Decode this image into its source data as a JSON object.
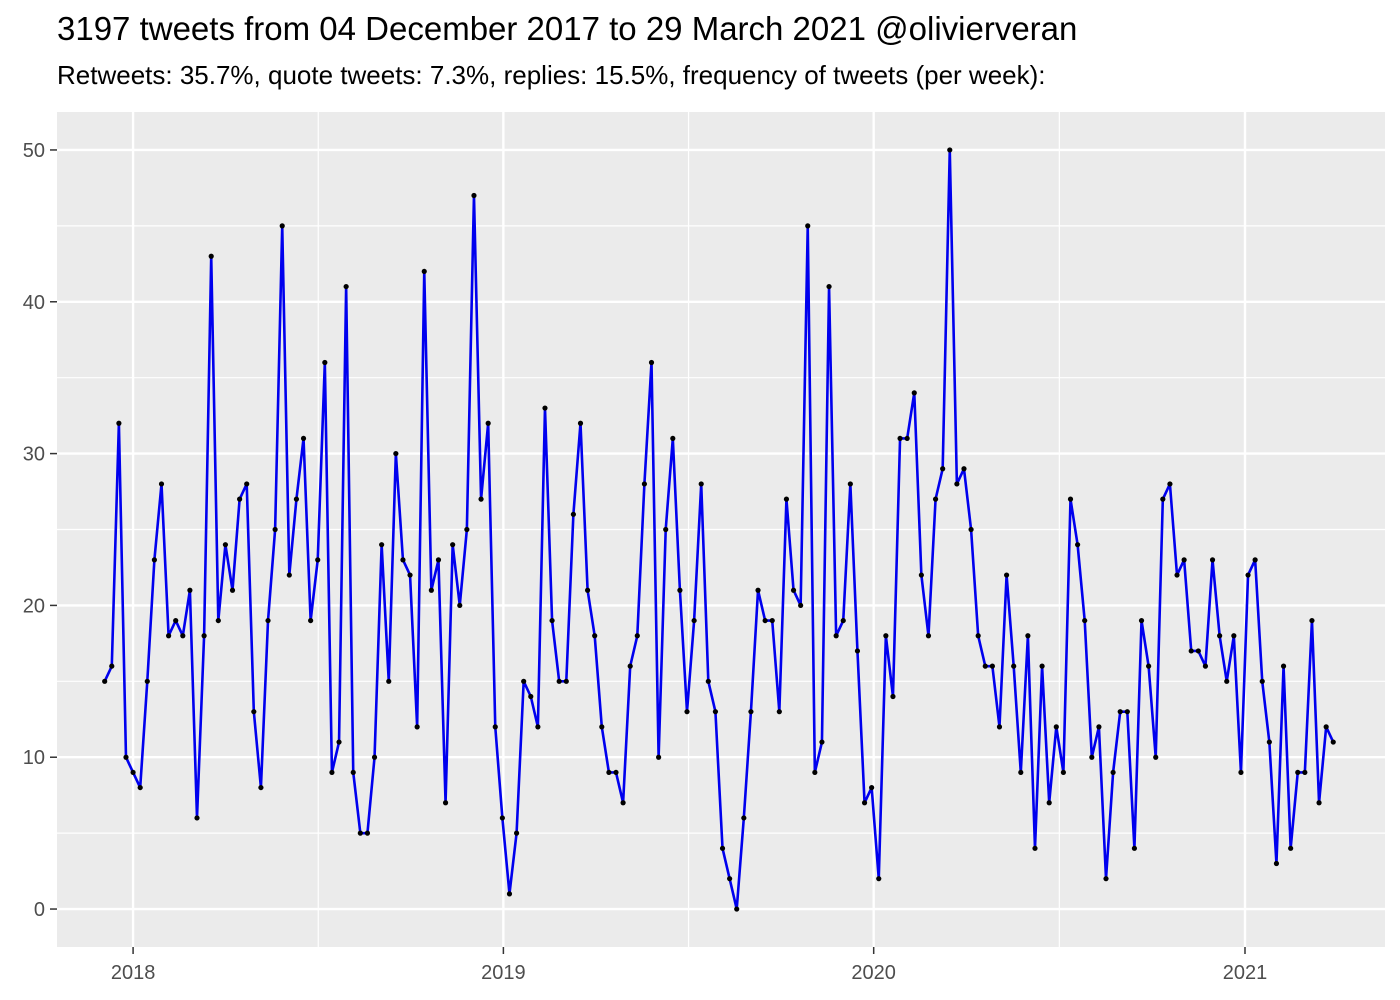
{
  "chart_data": {
    "type": "line",
    "title": "3197 tweets from 04 December 2017 to 29 March 2021 @olivierveran",
    "subtitle": "Retweets: 35.7%, quote tweets: 7.3%, replies: 15.5%, frequency of tweets (per week):",
    "xlabel": "",
    "ylabel": "",
    "x_start": "2017-12-04",
    "x_end": "2021-03-29",
    "x_step_days": 7,
    "xlim": [
      "2017-10-18",
      "2021-05-19"
    ],
    "ylim": [
      -2.5,
      52.5
    ],
    "x_ticks": [
      {
        "date": "2018-01-01",
        "label": "2018"
      },
      {
        "date": "2019-01-01",
        "label": "2019"
      },
      {
        "date": "2020-01-01",
        "label": "2020"
      },
      {
        "date": "2021-01-01",
        "label": "2021"
      }
    ],
    "y_ticks": [
      0,
      10,
      20,
      30,
      40,
      50
    ],
    "grid": true,
    "legend": "none",
    "line_color": "#0000ee",
    "point_color": "#000000",
    "panel_color": "#ebebeb",
    "values": [
      15,
      16,
      32,
      10,
      9,
      8,
      15,
      23,
      28,
      18,
      19,
      18,
      21,
      6,
      18,
      43,
      19,
      24,
      21,
      27,
      28,
      13,
      8,
      19,
      25,
      45,
      22,
      27,
      31,
      19,
      23,
      36,
      9,
      11,
      41,
      9,
      5,
      5,
      10,
      24,
      15,
      30,
      23,
      22,
      12,
      42,
      21,
      23,
      7,
      24,
      20,
      25,
      47,
      27,
      32,
      12,
      6,
      1,
      5,
      15,
      14,
      12,
      33,
      19,
      15,
      15,
      26,
      32,
      21,
      18,
      12,
      9,
      9,
      7,
      16,
      18,
      28,
      36,
      10,
      25,
      31,
      21,
      13,
      19,
      28,
      15,
      13,
      4,
      2,
      0,
      6,
      13,
      21,
      19,
      19,
      13,
      27,
      21,
      20,
      45,
      9,
      11,
      41,
      18,
      19,
      28,
      17,
      7,
      8,
      2,
      18,
      14,
      31,
      31,
      34,
      22,
      18,
      27,
      29,
      50,
      28,
      29,
      25,
      18,
      16,
      16,
      12,
      22,
      16,
      9,
      18,
      4,
      16,
      7,
      12,
      9,
      27,
      24,
      19,
      10,
      12,
      2,
      9,
      13,
      13,
      4,
      19,
      16,
      10,
      27,
      28,
      22,
      23,
      17,
      17,
      16,
      23,
      18,
      15,
      18,
      9,
      22,
      23,
      15,
      11,
      3,
      16,
      4,
      9,
      9,
      19,
      7,
      12,
      11
    ]
  }
}
